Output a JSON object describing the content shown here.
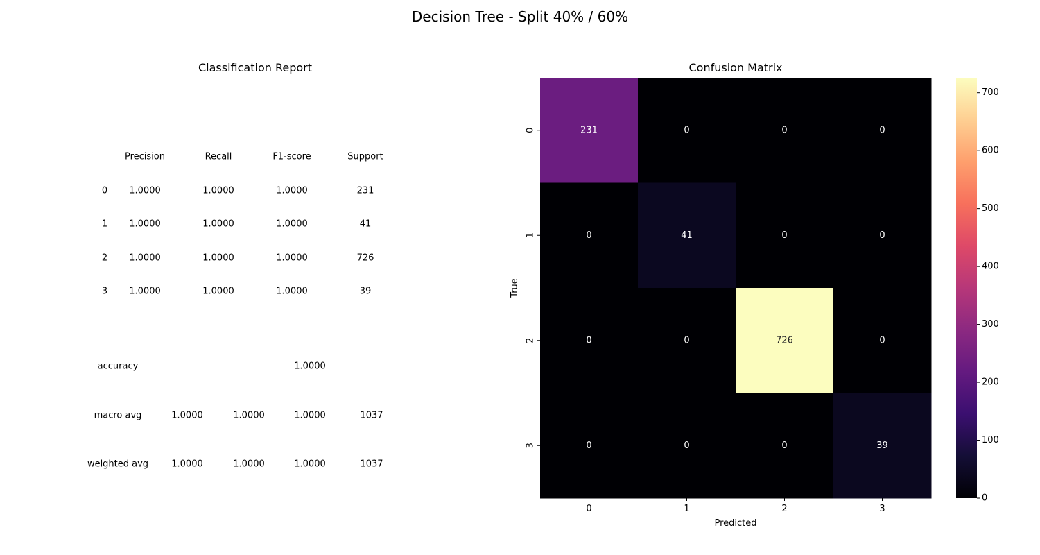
{
  "suptitle": "Decision Tree - Split 40% / 60%",
  "report": {
    "title": "Classification Report",
    "headers": [
      "Precision",
      "Recall",
      "F1-score",
      "Support"
    ],
    "rows": [
      {
        "label": "0",
        "precision": "1.0000",
        "recall": "1.0000",
        "f1": "1.0000",
        "support": "231"
      },
      {
        "label": "1",
        "precision": "1.0000",
        "recall": "1.0000",
        "f1": "1.0000",
        "support": "41"
      },
      {
        "label": "2",
        "precision": "1.0000",
        "recall": "1.0000",
        "f1": "1.0000",
        "support": "726"
      },
      {
        "label": "3",
        "precision": "1.0000",
        "recall": "1.0000",
        "f1": "1.0000",
        "support": "39"
      }
    ],
    "accuracy": {
      "label": "accuracy",
      "value": "1.0000"
    },
    "macro_avg": {
      "label": "macro avg",
      "precision": "1.0000",
      "recall": "1.0000",
      "f1": "1.0000",
      "support": "1037"
    },
    "weighted_avg": {
      "label": "weighted avg",
      "precision": "1.0000",
      "recall": "1.0000",
      "f1": "1.0000",
      "support": "1037"
    }
  },
  "chart_data": {
    "type": "heatmap",
    "title": "Confusion Matrix",
    "xlabel": "Predicted",
    "ylabel": "True",
    "x_categories": [
      "0",
      "1",
      "2",
      "3"
    ],
    "y_categories": [
      "0",
      "1",
      "2",
      "3"
    ],
    "values": [
      [
        231,
        0,
        0,
        0
      ],
      [
        0,
        41,
        0,
        0
      ],
      [
        0,
        0,
        726,
        0
      ],
      [
        0,
        0,
        0,
        39
      ]
    ],
    "colormap": "magma",
    "colorbar": {
      "min": 0,
      "max": 726,
      "ticks": [
        0,
        100,
        200,
        300,
        400,
        500,
        600,
        700
      ]
    },
    "annotation_colors": {
      "on_dark": "#ffffff",
      "on_light": "#262626"
    }
  }
}
